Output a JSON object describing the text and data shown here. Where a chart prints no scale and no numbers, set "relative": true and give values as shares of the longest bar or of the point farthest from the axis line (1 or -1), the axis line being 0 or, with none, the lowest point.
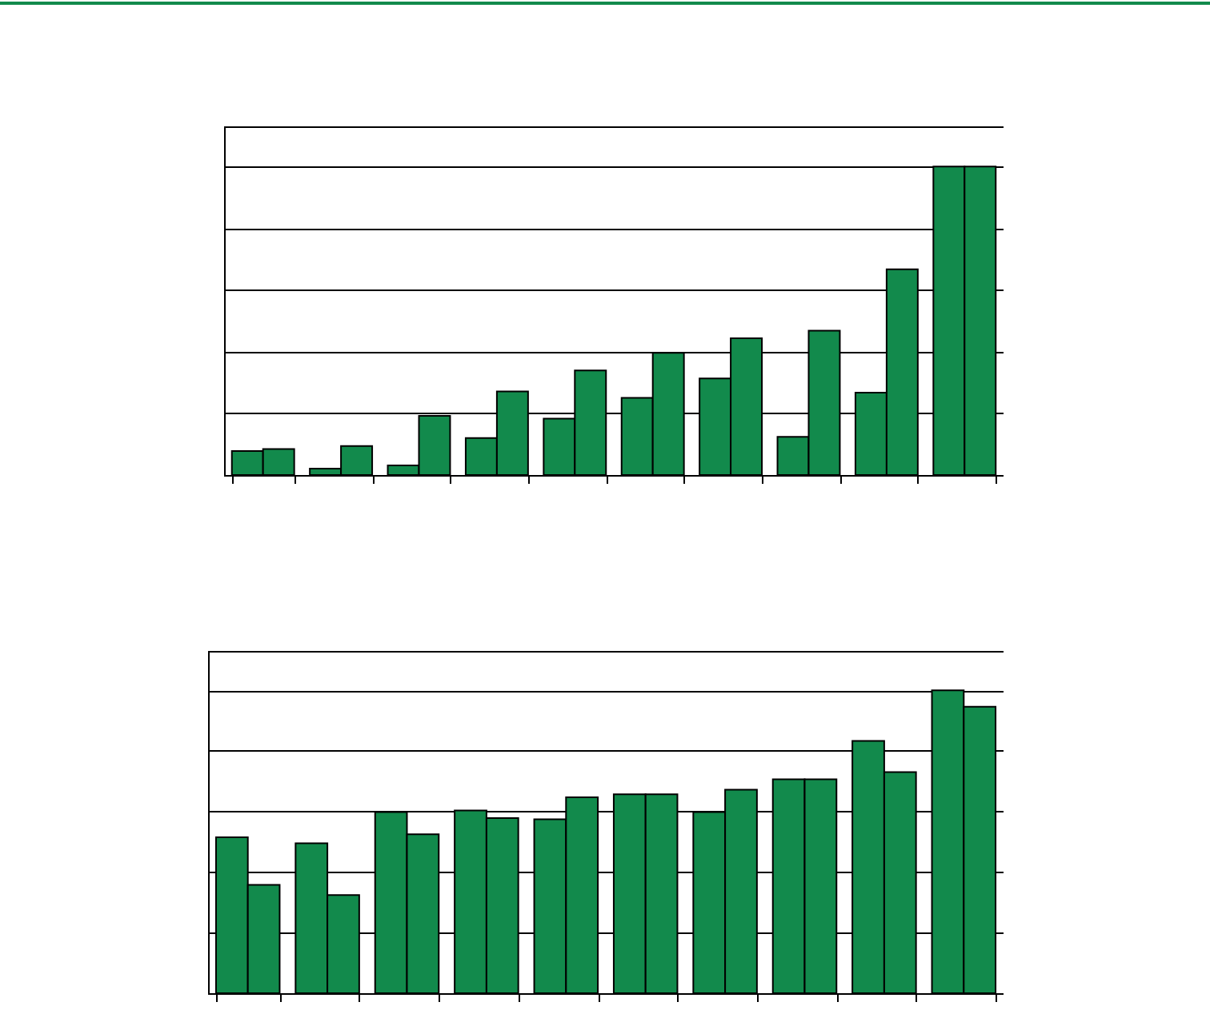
{
  "chart_data": [
    {
      "type": "bar",
      "relative": true,
      "grid": "y",
      "tick_labels": false,
      "categories": [
        null,
        null,
        null,
        null,
        null,
        null,
        null,
        null,
        null,
        null
      ],
      "series": [
        {
          "color": "#128a4c",
          "values": [
            0.078,
            0.021,
            0.031,
            0.12,
            0.183,
            0.25,
            0.313,
            0.124,
            0.267,
            1
          ]
        },
        {
          "color": "#128a4c",
          "values": [
            0.084,
            0.094,
            0.192,
            0.271,
            0.339,
            0.396,
            0.443,
            0.468,
            0.667,
            1
          ]
        }
      ]
    },
    {
      "type": "bar",
      "relative": true,
      "grid": "y",
      "tick_labels": false,
      "categories": [
        null,
        null,
        null,
        null,
        null,
        null,
        null,
        null,
        null,
        null
      ],
      "series": [
        {
          "color": "#128a4c",
          "values": [
            0.515,
            0.495,
            0.598,
            0.603,
            0.574,
            0.657,
            0.598,
            0.706,
            0.833,
            1
          ]
        },
        {
          "color": "#128a4c",
          "values": [
            0.358,
            0.324,
            0.525,
            0.578,
            0.647,
            0.657,
            0.672,
            0.706,
            0.73,
            0.946
          ]
        }
      ]
    }
  ]
}
